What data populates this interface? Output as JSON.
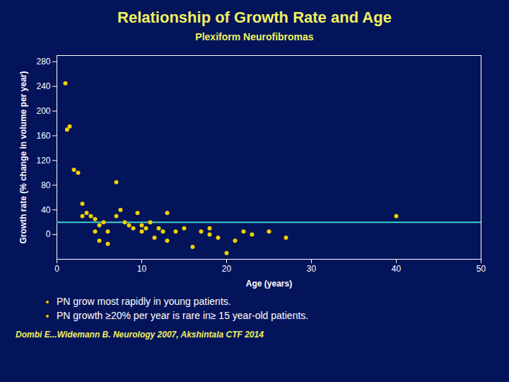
{
  "chart_data": {
    "type": "scatter",
    "title": "Relationship of Growth Rate and Age",
    "subtitle": "Plexiform Neurofibromas",
    "xlabel": "Age (years)",
    "ylabel": "Growth rate (% change in volume per year)",
    "x": [
      1,
      1.2,
      1.5,
      2,
      2.5,
      3,
      3,
      3.5,
      4,
      4.5,
      4.5,
      5,
      5,
      5.5,
      6,
      6,
      7,
      7,
      7.5,
      8,
      8.5,
      9,
      9.5,
      10,
      10,
      10.5,
      11,
      11.5,
      12,
      12.5,
      13,
      13,
      14,
      15,
      16,
      17,
      18,
      18,
      19,
      20,
      21,
      22,
      23,
      25,
      27,
      40
    ],
    "values": [
      245,
      170,
      175,
      105,
      100,
      50,
      30,
      35,
      30,
      25,
      5,
      15,
      -10,
      20,
      5,
      -15,
      85,
      30,
      40,
      20,
      15,
      10,
      35,
      15,
      5,
      10,
      20,
      -5,
      10,
      5,
      -10,
      35,
      5,
      10,
      -20,
      5,
      0,
      10,
      -5,
      -30,
      -10,
      5,
      0,
      5,
      -5,
      30
    ],
    "color": "#f0d000",
    "marker": "circle",
    "xlim": [
      0,
      50
    ],
    "ylim": [
      -40,
      290
    ],
    "xticks": [
      0,
      10,
      20,
      30,
      40,
      50
    ],
    "yticks": [
      0,
      40,
      80,
      120,
      160,
      200,
      240,
      280
    ],
    "grid": false,
    "reference_line": {
      "y": 20,
      "color": "#40d0c8"
    },
    "annotations": [
      "PN grow most rapidly in young patients.",
      "PN growth ≥20% per year is rare in≥ 15 year-old patients."
    ],
    "footnote": "Dombi E...Widemann B. Neurology 2007, Akshintala CTF 2014"
  }
}
